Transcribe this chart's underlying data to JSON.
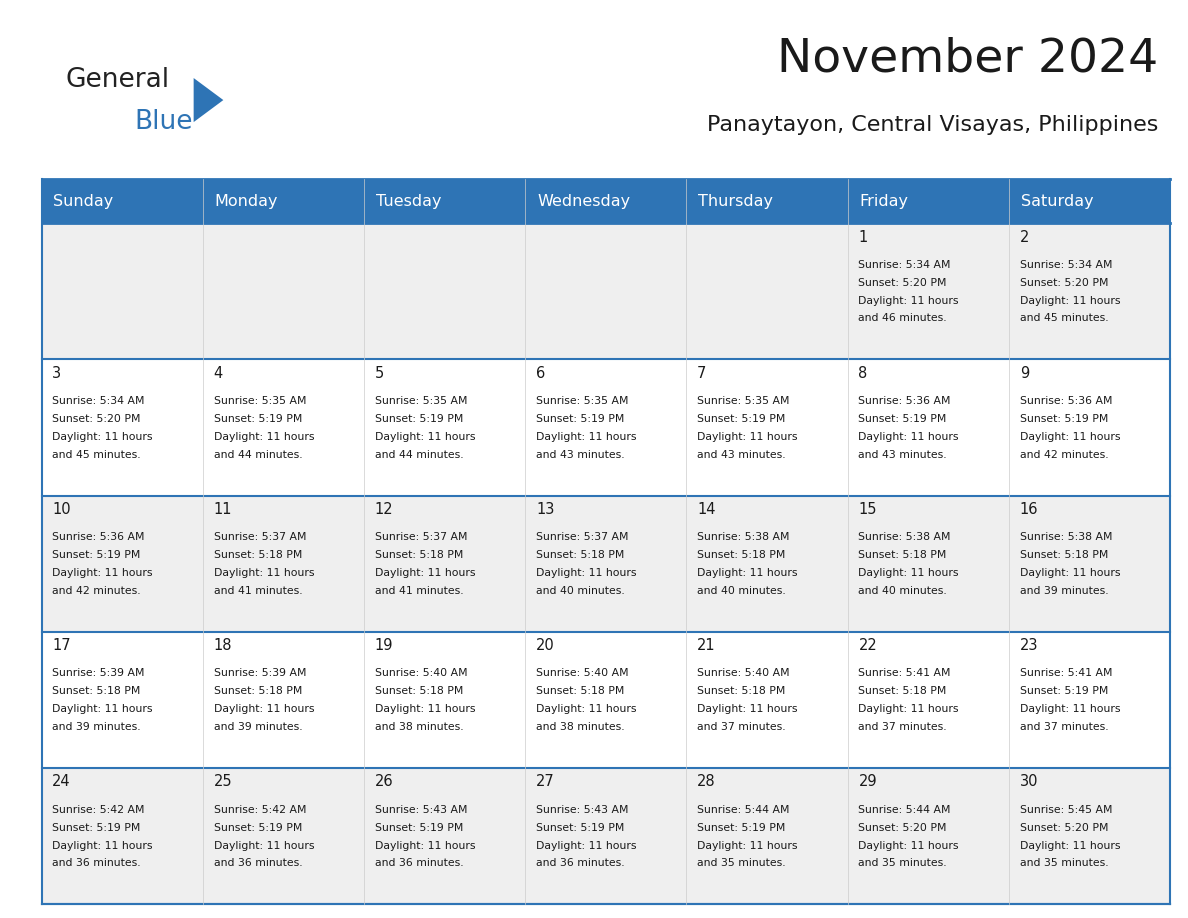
{
  "title": "November 2024",
  "subtitle": "Panaytayon, Central Visayas, Philippines",
  "days_of_week": [
    "Sunday",
    "Monday",
    "Tuesday",
    "Wednesday",
    "Thursday",
    "Friday",
    "Saturday"
  ],
  "header_bg": "#2E74B5",
  "header_text": "#FFFFFF",
  "cell_bg_light": "#EFEFEF",
  "cell_bg_white": "#FFFFFF",
  "border_color": "#2E74B5",
  "text_color": "#1a1a1a",
  "title_color": "#1a1a1a",
  "subtitle_color": "#1a1a1a",
  "logo_general_color": "#222222",
  "logo_blue_color": "#2E74B5",
  "weeks": [
    [
      null,
      null,
      null,
      null,
      null,
      1,
      2
    ],
    [
      3,
      4,
      5,
      6,
      7,
      8,
      9
    ],
    [
      10,
      11,
      12,
      13,
      14,
      15,
      16
    ],
    [
      17,
      18,
      19,
      20,
      21,
      22,
      23
    ],
    [
      24,
      25,
      26,
      27,
      28,
      29,
      30
    ]
  ],
  "cell_data": {
    "1": {
      "sunrise": "5:34 AM",
      "sunset": "5:20 PM",
      "daylight": "11 hours and 46 minutes."
    },
    "2": {
      "sunrise": "5:34 AM",
      "sunset": "5:20 PM",
      "daylight": "11 hours and 45 minutes."
    },
    "3": {
      "sunrise": "5:34 AM",
      "sunset": "5:20 PM",
      "daylight": "11 hours and 45 minutes."
    },
    "4": {
      "sunrise": "5:35 AM",
      "sunset": "5:19 PM",
      "daylight": "11 hours and 44 minutes."
    },
    "5": {
      "sunrise": "5:35 AM",
      "sunset": "5:19 PM",
      "daylight": "11 hours and 44 minutes."
    },
    "6": {
      "sunrise": "5:35 AM",
      "sunset": "5:19 PM",
      "daylight": "11 hours and 43 minutes."
    },
    "7": {
      "sunrise": "5:35 AM",
      "sunset": "5:19 PM",
      "daylight": "11 hours and 43 minutes."
    },
    "8": {
      "sunrise": "5:36 AM",
      "sunset": "5:19 PM",
      "daylight": "11 hours and 43 minutes."
    },
    "9": {
      "sunrise": "5:36 AM",
      "sunset": "5:19 PM",
      "daylight": "11 hours and 42 minutes."
    },
    "10": {
      "sunrise": "5:36 AM",
      "sunset": "5:19 PM",
      "daylight": "11 hours and 42 minutes."
    },
    "11": {
      "sunrise": "5:37 AM",
      "sunset": "5:18 PM",
      "daylight": "11 hours and 41 minutes."
    },
    "12": {
      "sunrise": "5:37 AM",
      "sunset": "5:18 PM",
      "daylight": "11 hours and 41 minutes."
    },
    "13": {
      "sunrise": "5:37 AM",
      "sunset": "5:18 PM",
      "daylight": "11 hours and 40 minutes."
    },
    "14": {
      "sunrise": "5:38 AM",
      "sunset": "5:18 PM",
      "daylight": "11 hours and 40 minutes."
    },
    "15": {
      "sunrise": "5:38 AM",
      "sunset": "5:18 PM",
      "daylight": "11 hours and 40 minutes."
    },
    "16": {
      "sunrise": "5:38 AM",
      "sunset": "5:18 PM",
      "daylight": "11 hours and 39 minutes."
    },
    "17": {
      "sunrise": "5:39 AM",
      "sunset": "5:18 PM",
      "daylight": "11 hours and 39 minutes."
    },
    "18": {
      "sunrise": "5:39 AM",
      "sunset": "5:18 PM",
      "daylight": "11 hours and 39 minutes."
    },
    "19": {
      "sunrise": "5:40 AM",
      "sunset": "5:18 PM",
      "daylight": "11 hours and 38 minutes."
    },
    "20": {
      "sunrise": "5:40 AM",
      "sunset": "5:18 PM",
      "daylight": "11 hours and 38 minutes."
    },
    "21": {
      "sunrise": "5:40 AM",
      "sunset": "5:18 PM",
      "daylight": "11 hours and 37 minutes."
    },
    "22": {
      "sunrise": "5:41 AM",
      "sunset": "5:18 PM",
      "daylight": "11 hours and 37 minutes."
    },
    "23": {
      "sunrise": "5:41 AM",
      "sunset": "5:19 PM",
      "daylight": "11 hours and 37 minutes."
    },
    "24": {
      "sunrise": "5:42 AM",
      "sunset": "5:19 PM",
      "daylight": "11 hours and 36 minutes."
    },
    "25": {
      "sunrise": "5:42 AM",
      "sunset": "5:19 PM",
      "daylight": "11 hours and 36 minutes."
    },
    "26": {
      "sunrise": "5:43 AM",
      "sunset": "5:19 PM",
      "daylight": "11 hours and 36 minutes."
    },
    "27": {
      "sunrise": "5:43 AM",
      "sunset": "5:19 PM",
      "daylight": "11 hours and 36 minutes."
    },
    "28": {
      "sunrise": "5:44 AM",
      "sunset": "5:19 PM",
      "daylight": "11 hours and 35 minutes."
    },
    "29": {
      "sunrise": "5:44 AM",
      "sunset": "5:20 PM",
      "daylight": "11 hours and 35 minutes."
    },
    "30": {
      "sunrise": "5:45 AM",
      "sunset": "5:20 PM",
      "daylight": "11 hours and 35 minutes."
    }
  },
  "figsize": [
    11.88,
    9.18
  ],
  "dpi": 100
}
